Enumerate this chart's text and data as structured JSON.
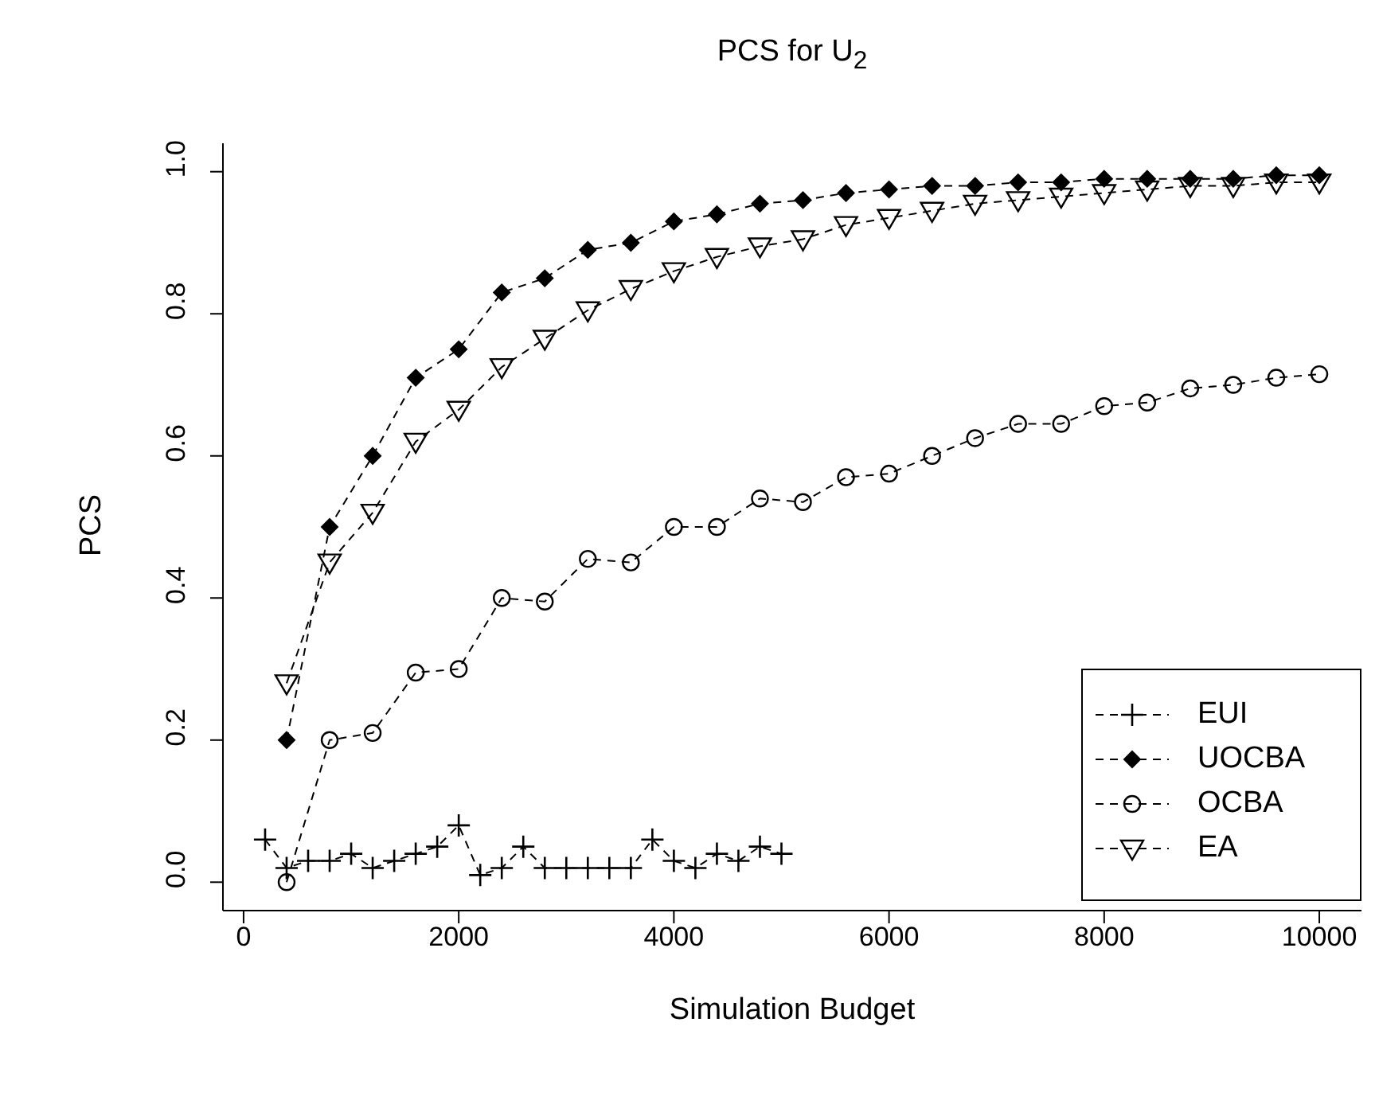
{
  "chart_data": {
    "type": "line",
    "title": "PCS for U$_{2}$",
    "xlabel": "Simulation Budget",
    "ylabel": "PCS",
    "xlim": [
      -192,
      10392
    ],
    "xticks": [
      0,
      2000,
      4000,
      6000,
      8000,
      10000
    ],
    "ylim": [
      -0.04,
      1.04
    ],
    "yticks": [
      {
        "value": 0,
        "label": "0.0"
      },
      0.2,
      0.4,
      0.6,
      0.8,
      {
        "value": 1,
        "label": "1.0"
      }
    ],
    "grid": false,
    "legend": "bottom right",
    "line_style": "dashed",
    "series": [
      {
        "name": "EUI",
        "color": "#000000",
        "marker": "cross",
        "x": [
          200,
          400,
          600,
          800,
          1000,
          1200,
          1400,
          1600,
          1800,
          2000,
          2200,
          2400,
          2600,
          2800,
          3000,
          3200,
          3400,
          3600,
          3800,
          4000,
          4200,
          4400,
          4600,
          4800,
          5000
        ],
        "values": [
          0.06,
          0.02,
          0.03,
          0.03,
          0.04,
          0.02,
          0.03,
          0.04,
          0.05,
          0.08,
          0.01,
          0.02,
          0.05,
          0.02,
          0.02,
          0.02,
          0.02,
          0.02,
          0.06,
          0.03,
          0.02,
          0.04,
          0.03,
          0.05,
          0.04
        ]
      },
      {
        "name": "UOCBA",
        "color": "#000000",
        "marker": "diamond",
        "x": [
          400,
          800,
          1200,
          1600,
          2000,
          2400,
          2800,
          3200,
          3600,
          4000,
          4400,
          4800,
          5200,
          5600,
          6000,
          6400,
          6800,
          7200,
          7600,
          8000,
          8400,
          8800,
          9200,
          9600,
          10000
        ],
        "values": [
          0.2,
          0.5,
          0.6,
          0.71,
          0.75,
          0.83,
          0.85,
          0.89,
          0.9,
          0.93,
          0.94,
          0.955,
          0.96,
          0.97,
          0.975,
          0.98,
          0.98,
          0.985,
          0.985,
          0.99,
          0.99,
          0.99,
          0.99,
          0.995,
          0.995
        ]
      },
      {
        "name": "OCBA",
        "color": "#000000",
        "marker": "circle",
        "x": [
          400,
          800,
          1200,
          1600,
          2000,
          2400,
          2800,
          3200,
          3600,
          4000,
          4400,
          4800,
          5200,
          5600,
          6000,
          6400,
          6800,
          7200,
          7600,
          8000,
          8400,
          8800,
          9200,
          9600,
          10000
        ],
        "values": [
          0.0,
          0.2,
          0.21,
          0.295,
          0.3,
          0.4,
          0.395,
          0.455,
          0.45,
          0.5,
          0.5,
          0.54,
          0.535,
          0.57,
          0.575,
          0.6,
          0.625,
          0.645,
          0.645,
          0.67,
          0.675,
          0.695,
          0.7,
          0.71,
          0.715
        ]
      },
      {
        "name": "EA",
        "color": "#000000",
        "marker": "triangle",
        "x": [
          400,
          800,
          1200,
          1600,
          2000,
          2400,
          2800,
          3200,
          3600,
          4000,
          4400,
          4800,
          5200,
          5600,
          6000,
          6400,
          6800,
          7200,
          7600,
          8000,
          8400,
          8800,
          9200,
          9600,
          10000
        ],
        "values": [
          0.28,
          0.45,
          0.52,
          0.62,
          0.665,
          0.725,
          0.765,
          0.805,
          0.835,
          0.86,
          0.88,
          0.895,
          0.905,
          0.925,
          0.935,
          0.945,
          0.955,
          0.96,
          0.965,
          0.97,
          0.975,
          0.98,
          0.98,
          0.985,
          0.985
        ]
      }
    ]
  }
}
